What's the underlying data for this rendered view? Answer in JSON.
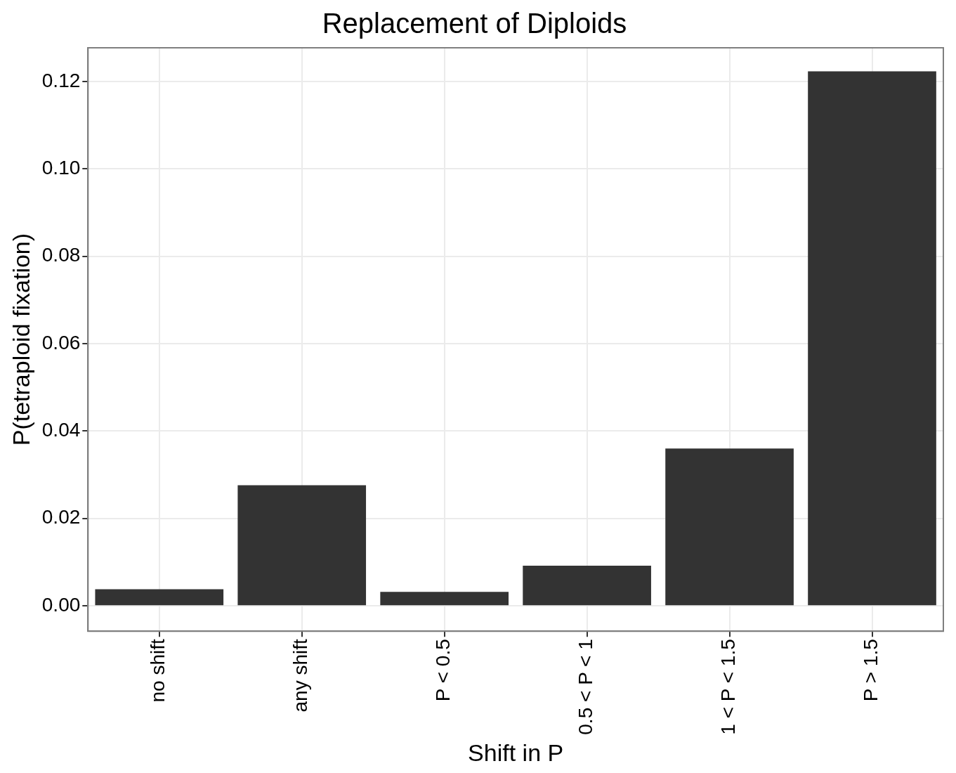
{
  "chart_data": {
    "type": "bar",
    "title": "Replacement of Diploids",
    "xlabel": "Shift in P",
    "ylabel": "P(tetraploid fixation)",
    "categories": [
      "no shift",
      "any shift",
      "P < 0.5",
      "0.5 < P < 1",
      "1 < P < 1.5",
      "P > 1.5"
    ],
    "values": [
      0.0038,
      0.0276,
      0.0032,
      0.0092,
      0.036,
      0.1223
    ],
    "color": "#333333",
    "ylim": [
      -0.0058,
      0.1277
    ],
    "yticks": [
      {
        "value": 0,
        "label": "0.00"
      },
      {
        "value": 0.02,
        "label": "0.02"
      },
      {
        "value": 0.04,
        "label": "0.04"
      },
      {
        "value": 0.06,
        "label": "0.06"
      },
      {
        "value": 0.08,
        "label": "0.08"
      },
      {
        "value": 0.1,
        "label": "0.10"
      },
      {
        "value": 0.12,
        "label": "0.12"
      }
    ],
    "grid": true,
    "legend": false
  }
}
